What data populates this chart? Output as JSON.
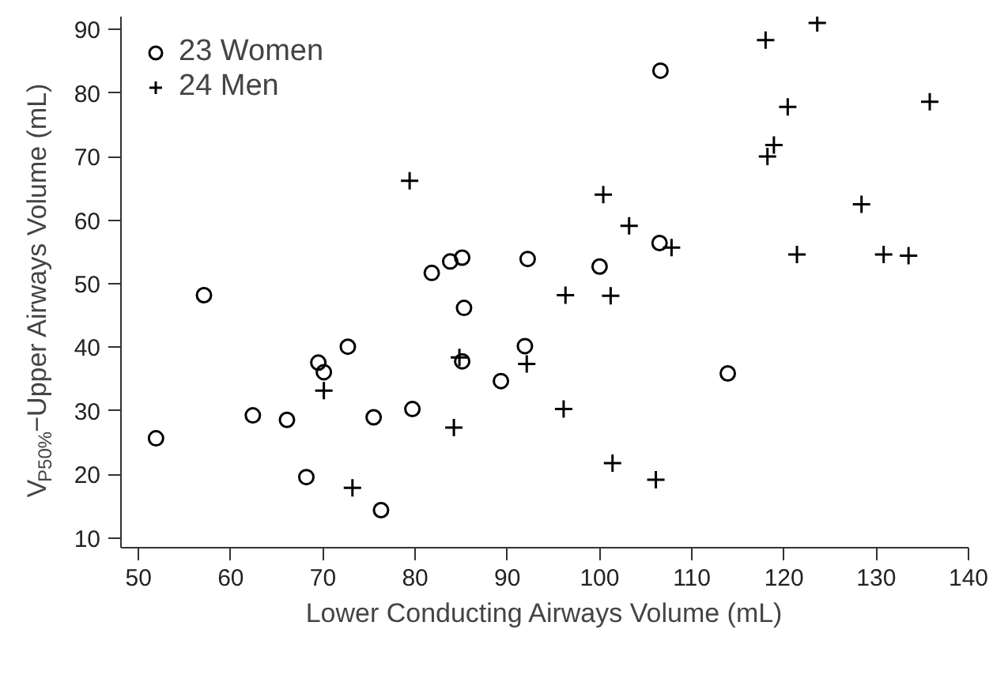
{
  "chart_data": {
    "type": "scatter",
    "xlabel": "Lower Conducting Airways Volume (mL)",
    "ylabel": "V$_{P50%}$−Upper Airways Volume (mL)",
    "xlim": [
      48.1,
      140
    ],
    "ylim": [
      8.5,
      92
    ],
    "xticks": [
      50,
      60,
      70,
      80,
      90,
      100,
      110,
      120,
      130,
      140
    ],
    "yticks": [
      10,
      20,
      30,
      40,
      50,
      60,
      70,
      80,
      90
    ],
    "grid": false,
    "legend": "top left",
    "series": [
      {
        "name": "23 Women",
        "color": "#000000",
        "marker": "circle",
        "x": [
          51.9,
          57.1,
          62.4,
          66.1,
          68.2,
          69.5,
          70.1,
          72.7,
          75.5,
          76.3,
          79.7,
          85.3,
          85.1,
          89.3,
          81.8,
          83.8,
          85.1,
          106.6,
          92.2,
          100.0,
          106.5,
          91.9,
          113.9
        ],
        "values": [
          25.7,
          48.2,
          29.3,
          28.6,
          19.6,
          37.6,
          36.1,
          40.1,
          29.0,
          14.4,
          30.3,
          46.2,
          37.8,
          34.7,
          51.7,
          53.5,
          54.1,
          83.5,
          53.9,
          52.7,
          56.4,
          40.2,
          35.9
        ]
      },
      {
        "name": "24 Men",
        "color": "#000000",
        "marker": "cross",
        "x": [
          79.4,
          70.1,
          73.2,
          84.2,
          84.8,
          96.3,
          101.2,
          92.1,
          96.1,
          101.4,
          106.1,
          100.4,
          103.2,
          107.8,
          118.0,
          123.6,
          120.4,
          118.9,
          118.2,
          135.8,
          128.4,
          121.4,
          130.8,
          133.5
        ],
        "values": [
          66.2,
          33.2,
          17.9,
          27.4,
          38.4,
          48.2,
          48.1,
          37.4,
          30.3,
          21.8,
          19.2,
          64.0,
          59.1,
          55.7,
          88.3,
          91.0,
          77.8,
          71.8,
          70.0,
          78.6,
          62.5,
          54.6,
          54.6,
          54.4
        ]
      }
    ]
  }
}
